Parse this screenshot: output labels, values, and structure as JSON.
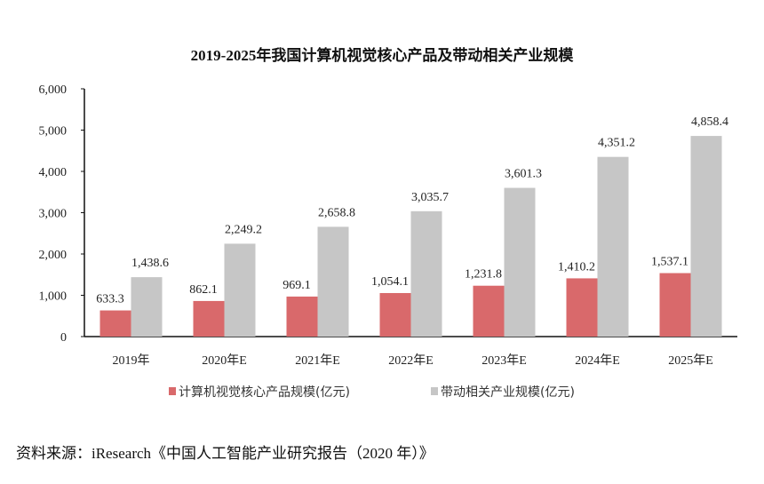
{
  "chart_data": {
    "type": "bar",
    "title": "2019-2025年我国计算机视觉核心产品及带动相关产业规模",
    "categories": [
      "2019年",
      "2020年E",
      "2021年E",
      "2022年E",
      "2023年E",
      "2024年E",
      "2025年E"
    ],
    "series": [
      {
        "name": "计算机视觉核心产品规模(亿元)",
        "color": "#d9696b",
        "values": [
          633.3,
          862.1,
          969.1,
          1054.1,
          1231.8,
          1410.2,
          1537.1
        ],
        "labels": [
          "633.3",
          "862.1",
          "969.1",
          "1,054.1",
          "1,231.8",
          "1,410.2",
          "1,537.1"
        ]
      },
      {
        "name": "带动相关产业规模(亿元)",
        "color": "#c6c6c6",
        "values": [
          1438.6,
          2249.2,
          2658.8,
          3035.7,
          3601.3,
          4351.2,
          4858.4
        ],
        "labels": [
          "1,438.6",
          "2,249.2",
          "2,658.8",
          "3,035.7",
          "3,601.3",
          "4,351.2",
          "4,858.4"
        ]
      }
    ],
    "ylim": [
      0,
      6000
    ],
    "yticks": [
      "0",
      "1,000",
      "2,000",
      "3,000",
      "4,000",
      "5,000",
      "6,000"
    ],
    "grid": false,
    "legend": "bottom"
  },
  "source": "资料来源：iResearch《中国人工智能产业研究报告（2020 年）》"
}
